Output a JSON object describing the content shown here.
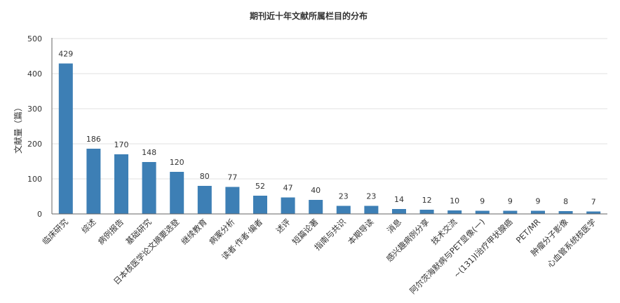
{
  "chart_data": {
    "type": "bar",
    "title": "期刊近十年文献所属栏目的分布",
    "ylabel": "文献量（篇）",
    "xlabel": "",
    "ylim": [
      0,
      500
    ],
    "yticks": [
      0,
      100,
      200,
      300,
      400,
      500
    ],
    "grid": true,
    "legend": "none",
    "bar_color": "#3d7fb5",
    "categories": [
      "临床研究",
      "综述",
      "病例报告",
      "基础研究",
      "日本核医学论文摘要选登",
      "继续教育",
      "病案分析",
      "读者·作者·编者",
      "述评",
      "短篇论著",
      "指南与共识",
      "本期导读",
      "消息",
      "感兴趣病例分享",
      "技术交流",
      "阿尔茨海默病与PET显像(一)",
      "~(131)I治疗甲状腺癌",
      "PET/MR",
      "肿瘤分子影像",
      "心血管系统核医学"
    ],
    "values": [
      429,
      186,
      170,
      148,
      120,
      80,
      77,
      52,
      47,
      40,
      23,
      23,
      14,
      12,
      10,
      9,
      9,
      9,
      8,
      7
    ]
  }
}
